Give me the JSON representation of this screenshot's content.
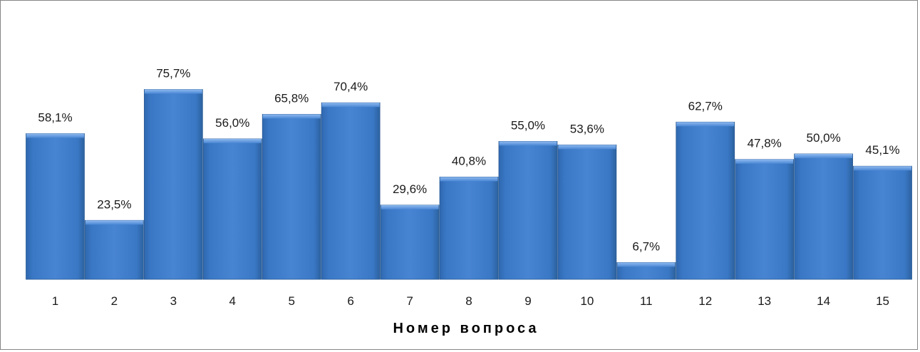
{
  "chart_data": {
    "type": "bar",
    "categories": [
      "1",
      "2",
      "3",
      "4",
      "5",
      "6",
      "7",
      "8",
      "9",
      "10",
      "11",
      "12",
      "13",
      "14",
      "15"
    ],
    "values": [
      58.1,
      23.5,
      75.7,
      56.0,
      65.8,
      70.4,
      29.6,
      40.8,
      55.0,
      53.6,
      6.7,
      62.7,
      47.8,
      50.0,
      45.1
    ],
    "value_labels": [
      "58,1%",
      "23,5%",
      "75,7%",
      "56,0%",
      "65,8%",
      "70,4%",
      "29,6%",
      "40,8%",
      "55,0%",
      "53,6%",
      "6,7%",
      "62,7%",
      "47,8%",
      "50,0%",
      "45,1%"
    ],
    "title": "",
    "xlabel": "Номер вопроса",
    "ylabel": "",
    "ylim": [
      0,
      100
    ],
    "grid": false,
    "legend": "none",
    "colors": {
      "bar": "#3a78c6",
      "bar_light": "#5b97dc",
      "bar_dark": "#2a5f9e",
      "frame": "#868686"
    }
  }
}
